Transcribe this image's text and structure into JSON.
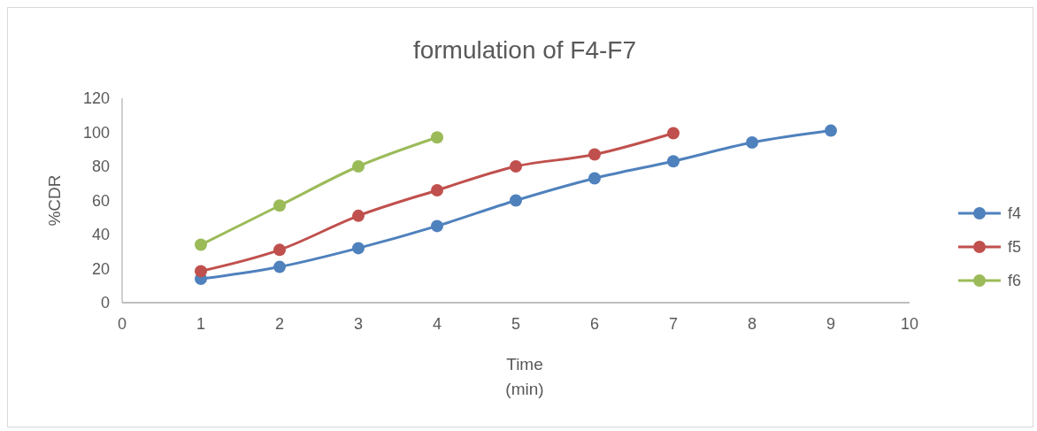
{
  "chart_data": {
    "type": "line",
    "title": "formulation of F4-F7",
    "xlabel": "Time\n(min)",
    "ylabel": "%CDR",
    "x": [
      1,
      2,
      3,
      4,
      5,
      6,
      7,
      8,
      9
    ],
    "series": [
      {
        "name": "f4",
        "color": "#4f81bd",
        "values": [
          14,
          21,
          32,
          45,
          60,
          73,
          83,
          94,
          101
        ]
      },
      {
        "name": "f5",
        "color": "#c0504d",
        "values": [
          18.5,
          31,
          51,
          66,
          80,
          87,
          99.5,
          null,
          null
        ]
      },
      {
        "name": "f6",
        "color": "#9bbb59",
        "values": [
          34,
          57,
          80,
          97,
          null,
          null,
          null,
          null,
          null
        ]
      }
    ],
    "xlim": [
      0,
      10
    ],
    "xticks": [
      0,
      1,
      2,
      3,
      4,
      5,
      6,
      7,
      8,
      9,
      10
    ],
    "ylim": [
      0,
      120
    ],
    "yticks": [
      0,
      20,
      40,
      60,
      80,
      100,
      120
    ],
    "grid": false,
    "legend": "right",
    "marker": "circle",
    "line_style": "solid"
  }
}
